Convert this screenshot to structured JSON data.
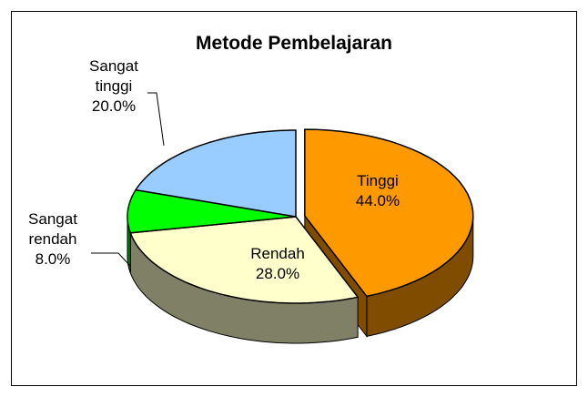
{
  "chart_data": {
    "type": "pie",
    "title": "Metode Pembelajaran",
    "categories": [
      "Tinggi",
      "Rendah",
      "Sangat rendah",
      "Sangat tinggi"
    ],
    "values": [
      44,
      28,
      8,
      20
    ],
    "value_labels": [
      "44.0%",
      "28.0%",
      "8.0%",
      "20.0%"
    ],
    "colors": [
      "#ff9900",
      "#ffffcc",
      "#00ff00",
      "#99ccff"
    ]
  }
}
